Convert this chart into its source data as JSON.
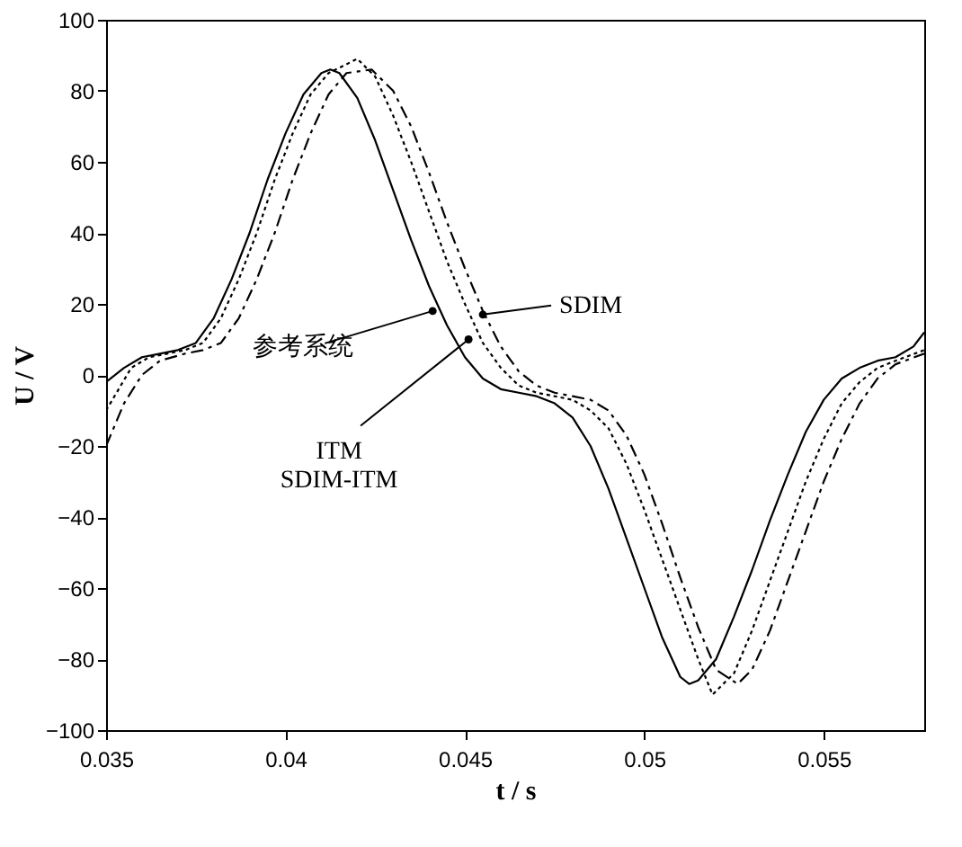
{
  "chart_data": {
    "type": "line",
    "xlabel": "t / s",
    "ylabel": "U / V",
    "xlim": [
      0.035,
      0.0578
    ],
    "ylim": [
      -100,
      100
    ],
    "xticks": [
      {
        "value": 0.035,
        "label": "0.035"
      },
      {
        "value": 0.04,
        "label": "0.04"
      },
      {
        "value": 0.045,
        "label": "0.045"
      },
      {
        "value": 0.05,
        "label": "0.05"
      },
      {
        "value": 0.055,
        "label": "0.055"
      }
    ],
    "yticks": [
      -100,
      -80,
      -60,
      -40,
      -20,
      0,
      20,
      40,
      60,
      80,
      100
    ],
    "grid": false,
    "series": [
      {
        "color": "#000000",
        "line_style": "solid",
        "x": [
          0.035,
          0.0355,
          0.036,
          0.0365,
          0.037,
          0.0375,
          0.038,
          0.0385,
          0.039,
          0.0395,
          0.04,
          0.0405,
          0.041,
          0.04125,
          0.0415,
          0.042,
          0.0425,
          0.043,
          0.0435,
          0.044,
          0.0445,
          0.045,
          0.0455,
          0.046,
          0.0465,
          0.047,
          0.0475,
          0.048,
          0.0485,
          0.049,
          0.0495,
          0.05,
          0.0505,
          0.051,
          0.05125,
          0.0515,
          0.052,
          0.0525,
          0.053,
          0.0535,
          0.054,
          0.0545,
          0.055,
          0.0555,
          0.056,
          0.0565,
          0.057,
          0.0575,
          0.0578
        ],
        "values": [
          -2,
          2,
          5,
          6,
          7,
          9,
          16,
          27,
          40,
          55,
          68,
          79,
          85,
          86,
          85,
          78,
          66,
          52,
          38,
          25,
          14,
          5,
          -1,
          -4,
          -5,
          -6,
          -8,
          -12,
          -20,
          -32,
          -46,
          -60,
          -74,
          -85,
          -87,
          -86,
          -80,
          -68,
          -55,
          -41,
          -28,
          -16,
          -7,
          -1,
          2,
          4,
          5,
          8,
          12
        ]
      },
      {
        "color": "#000000",
        "line_style": "dotted",
        "x": [
          0.035,
          0.0357,
          0.0362,
          0.0367,
          0.0372,
          0.0377,
          0.0382,
          0.0387,
          0.0392,
          0.0397,
          0.0402,
          0.0407,
          0.0412,
          0.042,
          0.0425,
          0.043,
          0.0435,
          0.044,
          0.0445,
          0.045,
          0.0455,
          0.046,
          0.0465,
          0.047,
          0.0475,
          0.048,
          0.0485,
          0.049,
          0.0495,
          0.05,
          0.0505,
          0.051,
          0.0515,
          0.0519,
          0.0525,
          0.053,
          0.0535,
          0.054,
          0.0545,
          0.055,
          0.0555,
          0.056,
          0.0565,
          0.057,
          0.0578
        ],
        "values": [
          -10,
          2,
          5,
          6,
          7,
          9,
          16,
          27,
          40,
          55,
          68,
          79,
          85,
          89,
          84,
          73,
          60,
          46,
          32,
          20,
          9,
          2,
          -3,
          -5,
          -6,
          -7,
          -10,
          -15,
          -25,
          -38,
          -52,
          -66,
          -80,
          -90,
          -84,
          -72,
          -58,
          -44,
          -30,
          -18,
          -8,
          -2,
          2,
          4,
          7
        ]
      },
      {
        "color": "#000000",
        "line_style": "dashed",
        "x": [
          0.035,
          0.0355,
          0.036,
          0.0365,
          0.0372,
          0.0377,
          0.0382,
          0.0387,
          0.0392,
          0.0397,
          0.0402,
          0.0407,
          0.0412,
          0.0417,
          0.0424,
          0.043,
          0.0435,
          0.044,
          0.0445,
          0.045,
          0.0455,
          0.046,
          0.0465,
          0.047,
          0.0475,
          0.048,
          0.0485,
          0.049,
          0.0495,
          0.05,
          0.0505,
          0.051,
          0.0515,
          0.052,
          0.0526,
          0.053,
          0.0535,
          0.054,
          0.0545,
          0.055,
          0.0555,
          0.056,
          0.0565,
          0.057,
          0.0578
        ],
        "values": [
          -20,
          -8,
          0,
          4,
          6,
          7,
          9,
          16,
          27,
          40,
          55,
          68,
          79,
          85,
          86,
          80,
          70,
          57,
          43,
          30,
          18,
          8,
          1,
          -3,
          -5,
          -6,
          -7,
          -10,
          -17,
          -28,
          -42,
          -57,
          -71,
          -83,
          -87,
          -83,
          -72,
          -58,
          -44,
          -30,
          -18,
          -8,
          -1,
          3,
          6
        ]
      }
    ],
    "annotations": [
      {
        "text": "参考系统",
        "x": 0.0441,
        "y": 18
      },
      {
        "text": "ITM\nSDIM-ITM",
        "x": 0.0451,
        "y": 10
      },
      {
        "text": "SDIM",
        "x": 0.0455,
        "y": 17
      }
    ]
  }
}
